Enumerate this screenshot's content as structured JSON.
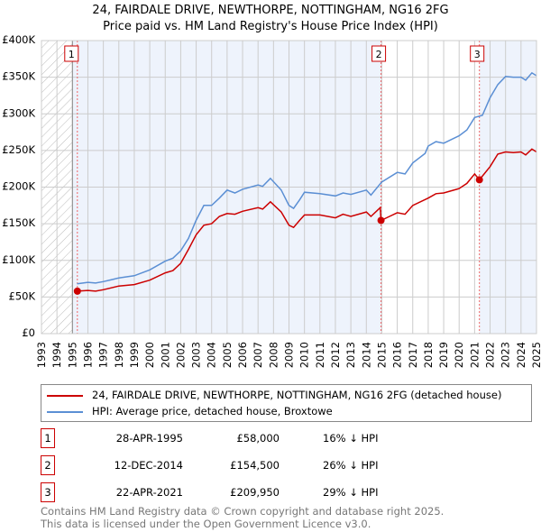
{
  "title": "24, FAIRDALE DRIVE, NEWTHORPE, NOTTINGHAM, NG16 2FG",
  "subtitle": "Price paid vs. HM Land Registry's House Price Index (HPI)",
  "colors": {
    "property": "#cc0000",
    "hpi": "#5b8fd4",
    "shade": "#eef3fc",
    "grid": "#cccccc"
  },
  "chart_data": {
    "type": "line",
    "xlim": [
      1993,
      2025
    ],
    "ylim": [
      0,
      400000
    ],
    "x_ticks": [
      "1993",
      "1994",
      "1995",
      "1996",
      "1997",
      "1998",
      "1999",
      "2000",
      "2001",
      "2002",
      "2003",
      "2004",
      "2005",
      "2006",
      "2007",
      "2008",
      "2009",
      "2010",
      "2011",
      "2012",
      "2013",
      "2014",
      "2015",
      "2016",
      "2017",
      "2018",
      "2019",
      "2020",
      "2021",
      "2022",
      "2023",
      "2024",
      "2025"
    ],
    "y_ticks": [
      {
        "v": 0,
        "label": "£0"
      },
      {
        "v": 50000,
        "label": "£50K"
      },
      {
        "v": 100000,
        "label": "£100K"
      },
      {
        "v": 150000,
        "label": "£150K"
      },
      {
        "v": 200000,
        "label": "£200K"
      },
      {
        "v": 250000,
        "label": "£250K"
      },
      {
        "v": 300000,
        "label": "£300K"
      },
      {
        "v": 350000,
        "label": "£350K"
      },
      {
        "v": 400000,
        "label": "£400K"
      }
    ],
    "grid": true,
    "hatched_before": 1995,
    "series": [
      {
        "name": "24, FAIRDALE DRIVE, NEWTHORPE, NOTTINGHAM, NG16 2FG (detached house)",
        "color": "#cc0000",
        "points": [
          [
            1995.32,
            58000
          ],
          [
            1996,
            59000
          ],
          [
            1996.5,
            58000
          ],
          [
            1997,
            60000
          ],
          [
            1998,
            65000
          ],
          [
            1999,
            67000
          ],
          [
            2000,
            73000
          ],
          [
            2001,
            83000
          ],
          [
            2001.5,
            86000
          ],
          [
            2002,
            96000
          ],
          [
            2002.5,
            115000
          ],
          [
            2003,
            135000
          ],
          [
            2003.5,
            148000
          ],
          [
            2004,
            150000
          ],
          [
            2004.5,
            160000
          ],
          [
            2005,
            164000
          ],
          [
            2005.5,
            163000
          ],
          [
            2006,
            167000
          ],
          [
            2007,
            172000
          ],
          [
            2007.3,
            170000
          ],
          [
            2007.8,
            180000
          ],
          [
            2008.5,
            166000
          ],
          [
            2009,
            148000
          ],
          [
            2009.3,
            145000
          ],
          [
            2009.7,
            155000
          ],
          [
            2010,
            162000
          ],
          [
            2011,
            162000
          ],
          [
            2012,
            158000
          ],
          [
            2012.5,
            163000
          ],
          [
            2013,
            160000
          ],
          [
            2014,
            166000
          ],
          [
            2014.3,
            160000
          ],
          [
            2014.9,
            172000
          ],
          [
            2014.95,
            154500
          ],
          [
            2015.5,
            160000
          ],
          [
            2016,
            165000
          ],
          [
            2016.5,
            163000
          ],
          [
            2017,
            175000
          ],
          [
            2018,
            185000
          ],
          [
            2018.5,
            191000
          ],
          [
            2019,
            192000
          ],
          [
            2020,
            198000
          ],
          [
            2020.5,
            205000
          ],
          [
            2021,
            218000
          ],
          [
            2021.31,
            209950
          ],
          [
            2022,
            228000
          ],
          [
            2022.5,
            245000
          ],
          [
            2023,
            248000
          ],
          [
            2023.5,
            247000
          ],
          [
            2024,
            248000
          ],
          [
            2024.3,
            244000
          ],
          [
            2024.7,
            252000
          ],
          [
            2025,
            248000
          ]
        ]
      },
      {
        "name": "HPI: Average price, detached house, Broxtowe",
        "color": "#5b8fd4",
        "points": [
          [
            1995.3,
            68000
          ],
          [
            1996,
            70000
          ],
          [
            1996.5,
            69000
          ],
          [
            1997,
            71000
          ],
          [
            1998,
            76000
          ],
          [
            1999,
            79000
          ],
          [
            2000,
            87000
          ],
          [
            2001,
            99000
          ],
          [
            2001.5,
            103000
          ],
          [
            2002,
            113000
          ],
          [
            2002.5,
            130000
          ],
          [
            2003,
            155000
          ],
          [
            2003.5,
            175000
          ],
          [
            2004,
            175000
          ],
          [
            2004.5,
            185000
          ],
          [
            2005,
            196000
          ],
          [
            2005.5,
            192000
          ],
          [
            2006,
            197000
          ],
          [
            2007,
            203000
          ],
          [
            2007.3,
            201000
          ],
          [
            2007.8,
            212000
          ],
          [
            2008.5,
            196000
          ],
          [
            2009,
            175000
          ],
          [
            2009.3,
            171000
          ],
          [
            2009.7,
            183000
          ],
          [
            2010,
            193000
          ],
          [
            2011,
            191000
          ],
          [
            2012,
            188000
          ],
          [
            2012.5,
            192000
          ],
          [
            2013,
            190000
          ],
          [
            2014,
            196000
          ],
          [
            2014.3,
            189000
          ],
          [
            2015,
            207000
          ],
          [
            2016,
            220000
          ],
          [
            2016.5,
            218000
          ],
          [
            2017,
            233000
          ],
          [
            2017.8,
            246000
          ],
          [
            2018,
            256000
          ],
          [
            2018.5,
            262000
          ],
          [
            2019,
            260000
          ],
          [
            2020,
            270000
          ],
          [
            2020.5,
            278000
          ],
          [
            2021,
            295000
          ],
          [
            2021.5,
            298000
          ],
          [
            2022,
            322000
          ],
          [
            2022.5,
            340000
          ],
          [
            2023,
            351000
          ],
          [
            2023.5,
            350000
          ],
          [
            2024,
            350000
          ],
          [
            2024.3,
            346000
          ],
          [
            2024.7,
            356000
          ],
          [
            2025,
            352000
          ]
        ]
      }
    ],
    "sales": [
      {
        "label": "1",
        "x": 1995.32,
        "y": 58000
      },
      {
        "label": "2",
        "x": 2014.95,
        "y": 154500
      },
      {
        "label": "3",
        "x": 2021.31,
        "y": 209950
      }
    ]
  },
  "legend": {
    "property": "24, FAIRDALE DRIVE, NEWTHORPE, NOTTINGHAM, NG16 2FG (detached house)",
    "hpi": "HPI: Average price, detached house, Broxtowe"
  },
  "transactions": [
    {
      "num": "1",
      "date": "28-APR-1995",
      "price": "£58,000",
      "hpi": "16% ↓ HPI"
    },
    {
      "num": "2",
      "date": "12-DEC-2014",
      "price": "£154,500",
      "hpi": "26% ↓ HPI"
    },
    {
      "num": "3",
      "date": "22-APR-2021",
      "price": "£209,950",
      "hpi": "29% ↓ HPI"
    }
  ],
  "footer": {
    "line1": "Contains HM Land Registry data © Crown copyright and database right 2025.",
    "line2": "This data is licensed under the Open Government Licence v3.0."
  }
}
